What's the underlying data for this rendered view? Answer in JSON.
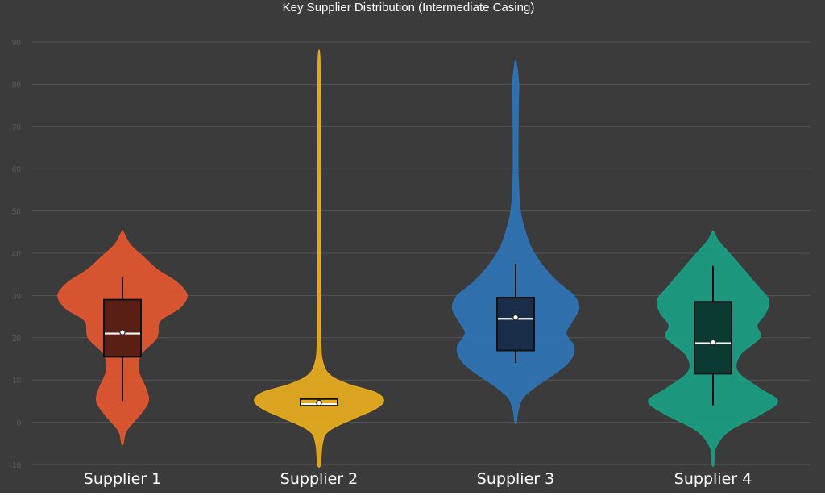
{
  "chart_data": {
    "type": "violin",
    "title": "Key Supplier Distribution (Intermediate Casing)",
    "xlabel": "",
    "ylabel": "",
    "ylim": [
      -10,
      90
    ],
    "yticks": [
      -10,
      0,
      10,
      20,
      30,
      40,
      50,
      60,
      70,
      80,
      90
    ],
    "grid": true,
    "legend": "none",
    "background_color": "#3b3b3b",
    "grid_color": "#555555",
    "categories": [
      "Supplier 1",
      "Supplier 2",
      "Supplier 3",
      "Supplier 4"
    ],
    "series": [
      {
        "category": "Supplier 1",
        "color": "#e2562f",
        "box_color": "#5a1f14",
        "violin_min": -5,
        "violin_max": 45,
        "whisker_low": 5,
        "q1": 15.5,
        "median": 21,
        "mean": 21.3,
        "q3": 29,
        "whisker_high": 34.5,
        "density": [
          [
            -5,
            0.01
          ],
          [
            -2,
            0.06
          ],
          [
            2,
            0.28
          ],
          [
            5,
            0.4
          ],
          [
            8,
            0.36
          ],
          [
            12,
            0.25
          ],
          [
            16,
            0.28
          ],
          [
            20,
            0.53
          ],
          [
            24,
            0.58
          ],
          [
            27,
            0.88
          ],
          [
            30,
            1.0
          ],
          [
            33,
            0.85
          ],
          [
            36,
            0.55
          ],
          [
            39,
            0.33
          ],
          [
            42,
            0.12
          ],
          [
            45,
            0.01
          ]
        ]
      },
      {
        "category": "Supplier 2",
        "color": "#e7ac1e",
        "box_color": "#e7ac1e",
        "violin_min": -10,
        "violin_max": 85,
        "whisker_low": 3.8,
        "q1": 4,
        "median": 4.3,
        "mean": 4.6,
        "q3": 5.5,
        "whisker_high": 5.8,
        "density": [
          [
            -10,
            0.02
          ],
          [
            -5,
            0.05
          ],
          [
            -2,
            0.15
          ],
          [
            1,
            0.55
          ],
          [
            3,
            0.85
          ],
          [
            5,
            1.0
          ],
          [
            7,
            0.88
          ],
          [
            9,
            0.45
          ],
          [
            11,
            0.18
          ],
          [
            14,
            0.06
          ],
          [
            20,
            0.025
          ],
          [
            40,
            0.018
          ],
          [
            60,
            0.016
          ],
          [
            85,
            0.015
          ]
        ]
      },
      {
        "category": "Supplier 3",
        "color": "#2e73b5",
        "box_color": "#1a2e4a",
        "violin_min": 0,
        "violin_max": 85,
        "whisker_low": 14,
        "q1": 17,
        "median": 24.5,
        "mean": 24.8,
        "q3": 29.5,
        "whisker_high": 37.5,
        "density": [
          [
            0,
            0.01
          ],
          [
            3,
            0.04
          ],
          [
            6,
            0.12
          ],
          [
            9,
            0.36
          ],
          [
            12,
            0.65
          ],
          [
            15,
            0.86
          ],
          [
            18,
            0.9
          ],
          [
            21,
            0.78
          ],
          [
            24,
            0.88
          ],
          [
            27,
            0.98
          ],
          [
            30,
            0.9
          ],
          [
            33,
            0.66
          ],
          [
            37,
            0.42
          ],
          [
            41,
            0.25
          ],
          [
            45,
            0.15
          ],
          [
            50,
            0.07
          ],
          [
            57,
            0.04
          ],
          [
            65,
            0.035
          ],
          [
            75,
            0.04
          ],
          [
            80,
            0.045
          ],
          [
            85,
            0.01
          ]
        ]
      },
      {
        "category": "Supplier 4",
        "color": "#1a9e82",
        "box_color": "#0a3a32",
        "violin_min": -10,
        "violin_max": 45,
        "whisker_low": 4,
        "q1": 11.5,
        "median": 18.7,
        "mean": 18.9,
        "q3": 28.5,
        "whisker_high": 37,
        "density": [
          [
            -10,
            0.01
          ],
          [
            -6,
            0.04
          ],
          [
            -2,
            0.25
          ],
          [
            2,
            0.75
          ],
          [
            5,
            1.0
          ],
          [
            8,
            0.72
          ],
          [
            12,
            0.38
          ],
          [
            16,
            0.42
          ],
          [
            20,
            0.72
          ],
          [
            23,
            0.68
          ],
          [
            26,
            0.82
          ],
          [
            29,
            0.86
          ],
          [
            32,
            0.7
          ],
          [
            36,
            0.48
          ],
          [
            40,
            0.25
          ],
          [
            43,
            0.08
          ],
          [
            45,
            0.01
          ]
        ]
      }
    ]
  }
}
